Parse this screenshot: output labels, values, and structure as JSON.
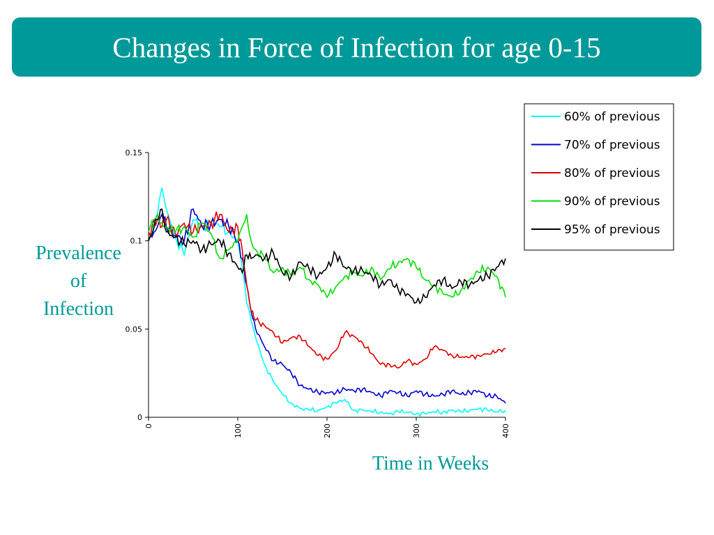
{
  "slide": {
    "title": "Changes in Force of Infection for age 0-15",
    "ylabel_lines": [
      "Prevalence",
      "of",
      "Infection"
    ],
    "xlabel": "Time in Weeks",
    "colors": {
      "title_bar": "#009999",
      "title_text": "#ffffff",
      "axis_labels": "#009999"
    }
  },
  "chart_data": {
    "type": "line",
    "title": "",
    "xlabel": "Time in Weeks",
    "ylabel": "Prevalence of Infection",
    "xlim": [
      0,
      400
    ],
    "ylim": [
      0,
      0.15
    ],
    "x_ticks": [
      0,
      100,
      200,
      300,
      400
    ],
    "x_tick_labels": [
      "0",
      "100",
      "200",
      "300",
      "400"
    ],
    "y_ticks": [
      0,
      0.05,
      0.1,
      0.15
    ],
    "y_tick_labels": [
      "0",
      "0.05",
      "0.1",
      "0.15"
    ],
    "grid": false,
    "legend_position": "top-right",
    "x": [
      0,
      10,
      15,
      20,
      30,
      40,
      50,
      60,
      70,
      80,
      90,
      100,
      105,
      110,
      115,
      120,
      130,
      140,
      150,
      160,
      170,
      180,
      190,
      200,
      210,
      220,
      230,
      240,
      250,
      260,
      270,
      280,
      290,
      300,
      310,
      320,
      330,
      340,
      350,
      360,
      370,
      380,
      390,
      400
    ],
    "series": [
      {
        "name": "60% of previous",
        "color": "#00ffff",
        "values": [
          0.1,
          0.115,
          0.13,
          0.118,
          0.102,
          0.092,
          0.112,
          0.108,
          0.11,
          0.108,
          0.105,
          0.1,
          0.085,
          0.065,
          0.055,
          0.045,
          0.03,
          0.02,
          0.013,
          0.008,
          0.005,
          0.004,
          0.004,
          0.006,
          0.008,
          0.01,
          0.004,
          0.004,
          0.003,
          0.003,
          0.002,
          0.003,
          0.003,
          0.002,
          0.002,
          0.003,
          0.003,
          0.004,
          0.003,
          0.004,
          0.005,
          0.004,
          0.003,
          0.004
        ]
      },
      {
        "name": "70% of previous",
        "color": "#0000cc",
        "values": [
          0.1,
          0.108,
          0.115,
          0.108,
          0.103,
          0.1,
          0.118,
          0.108,
          0.11,
          0.112,
          0.108,
          0.1,
          0.09,
          0.075,
          0.06,
          0.05,
          0.04,
          0.032,
          0.03,
          0.025,
          0.018,
          0.016,
          0.014,
          0.014,
          0.014,
          0.016,
          0.015,
          0.016,
          0.014,
          0.012,
          0.015,
          0.014,
          0.012,
          0.015,
          0.013,
          0.012,
          0.013,
          0.015,
          0.013,
          0.014,
          0.015,
          0.012,
          0.012,
          0.008
        ]
      },
      {
        "name": "80% of previous",
        "color": "#dd0000",
        "values": [
          0.105,
          0.112,
          0.108,
          0.112,
          0.104,
          0.11,
          0.105,
          0.108,
          0.11,
          0.115,
          0.105,
          0.108,
          0.095,
          0.075,
          0.06,
          0.055,
          0.052,
          0.048,
          0.042,
          0.045,
          0.046,
          0.04,
          0.035,
          0.033,
          0.038,
          0.048,
          0.046,
          0.042,
          0.036,
          0.03,
          0.03,
          0.028,
          0.032,
          0.03,
          0.033,
          0.04,
          0.038,
          0.035,
          0.034,
          0.034,
          0.035,
          0.036,
          0.037,
          0.039
        ]
      },
      {
        "name": "90% of previous",
        "color": "#00dd00",
        "values": [
          0.105,
          0.115,
          0.11,
          0.108,
          0.105,
          0.108,
          0.102,
          0.11,
          0.104,
          0.09,
          0.095,
          0.1,
          0.108,
          0.115,
          0.1,
          0.095,
          0.09,
          0.082,
          0.085,
          0.08,
          0.085,
          0.078,
          0.075,
          0.068,
          0.074,
          0.08,
          0.082,
          0.08,
          0.085,
          0.078,
          0.084,
          0.088,
          0.09,
          0.085,
          0.078,
          0.075,
          0.07,
          0.068,
          0.072,
          0.078,
          0.082,
          0.085,
          0.08,
          0.068
        ]
      },
      {
        "name": "95% of previous",
        "color": "#000000",
        "values": [
          0.1,
          0.112,
          0.118,
          0.105,
          0.102,
          0.098,
          0.1,
          0.095,
          0.098,
          0.1,
          0.093,
          0.085,
          0.082,
          0.092,
          0.09,
          0.092,
          0.09,
          0.093,
          0.082,
          0.08,
          0.088,
          0.084,
          0.08,
          0.085,
          0.092,
          0.085,
          0.083,
          0.083,
          0.08,
          0.075,
          0.078,
          0.072,
          0.07,
          0.065,
          0.068,
          0.075,
          0.078,
          0.073,
          0.077,
          0.075,
          0.078,
          0.08,
          0.085,
          0.09
        ]
      }
    ]
  }
}
